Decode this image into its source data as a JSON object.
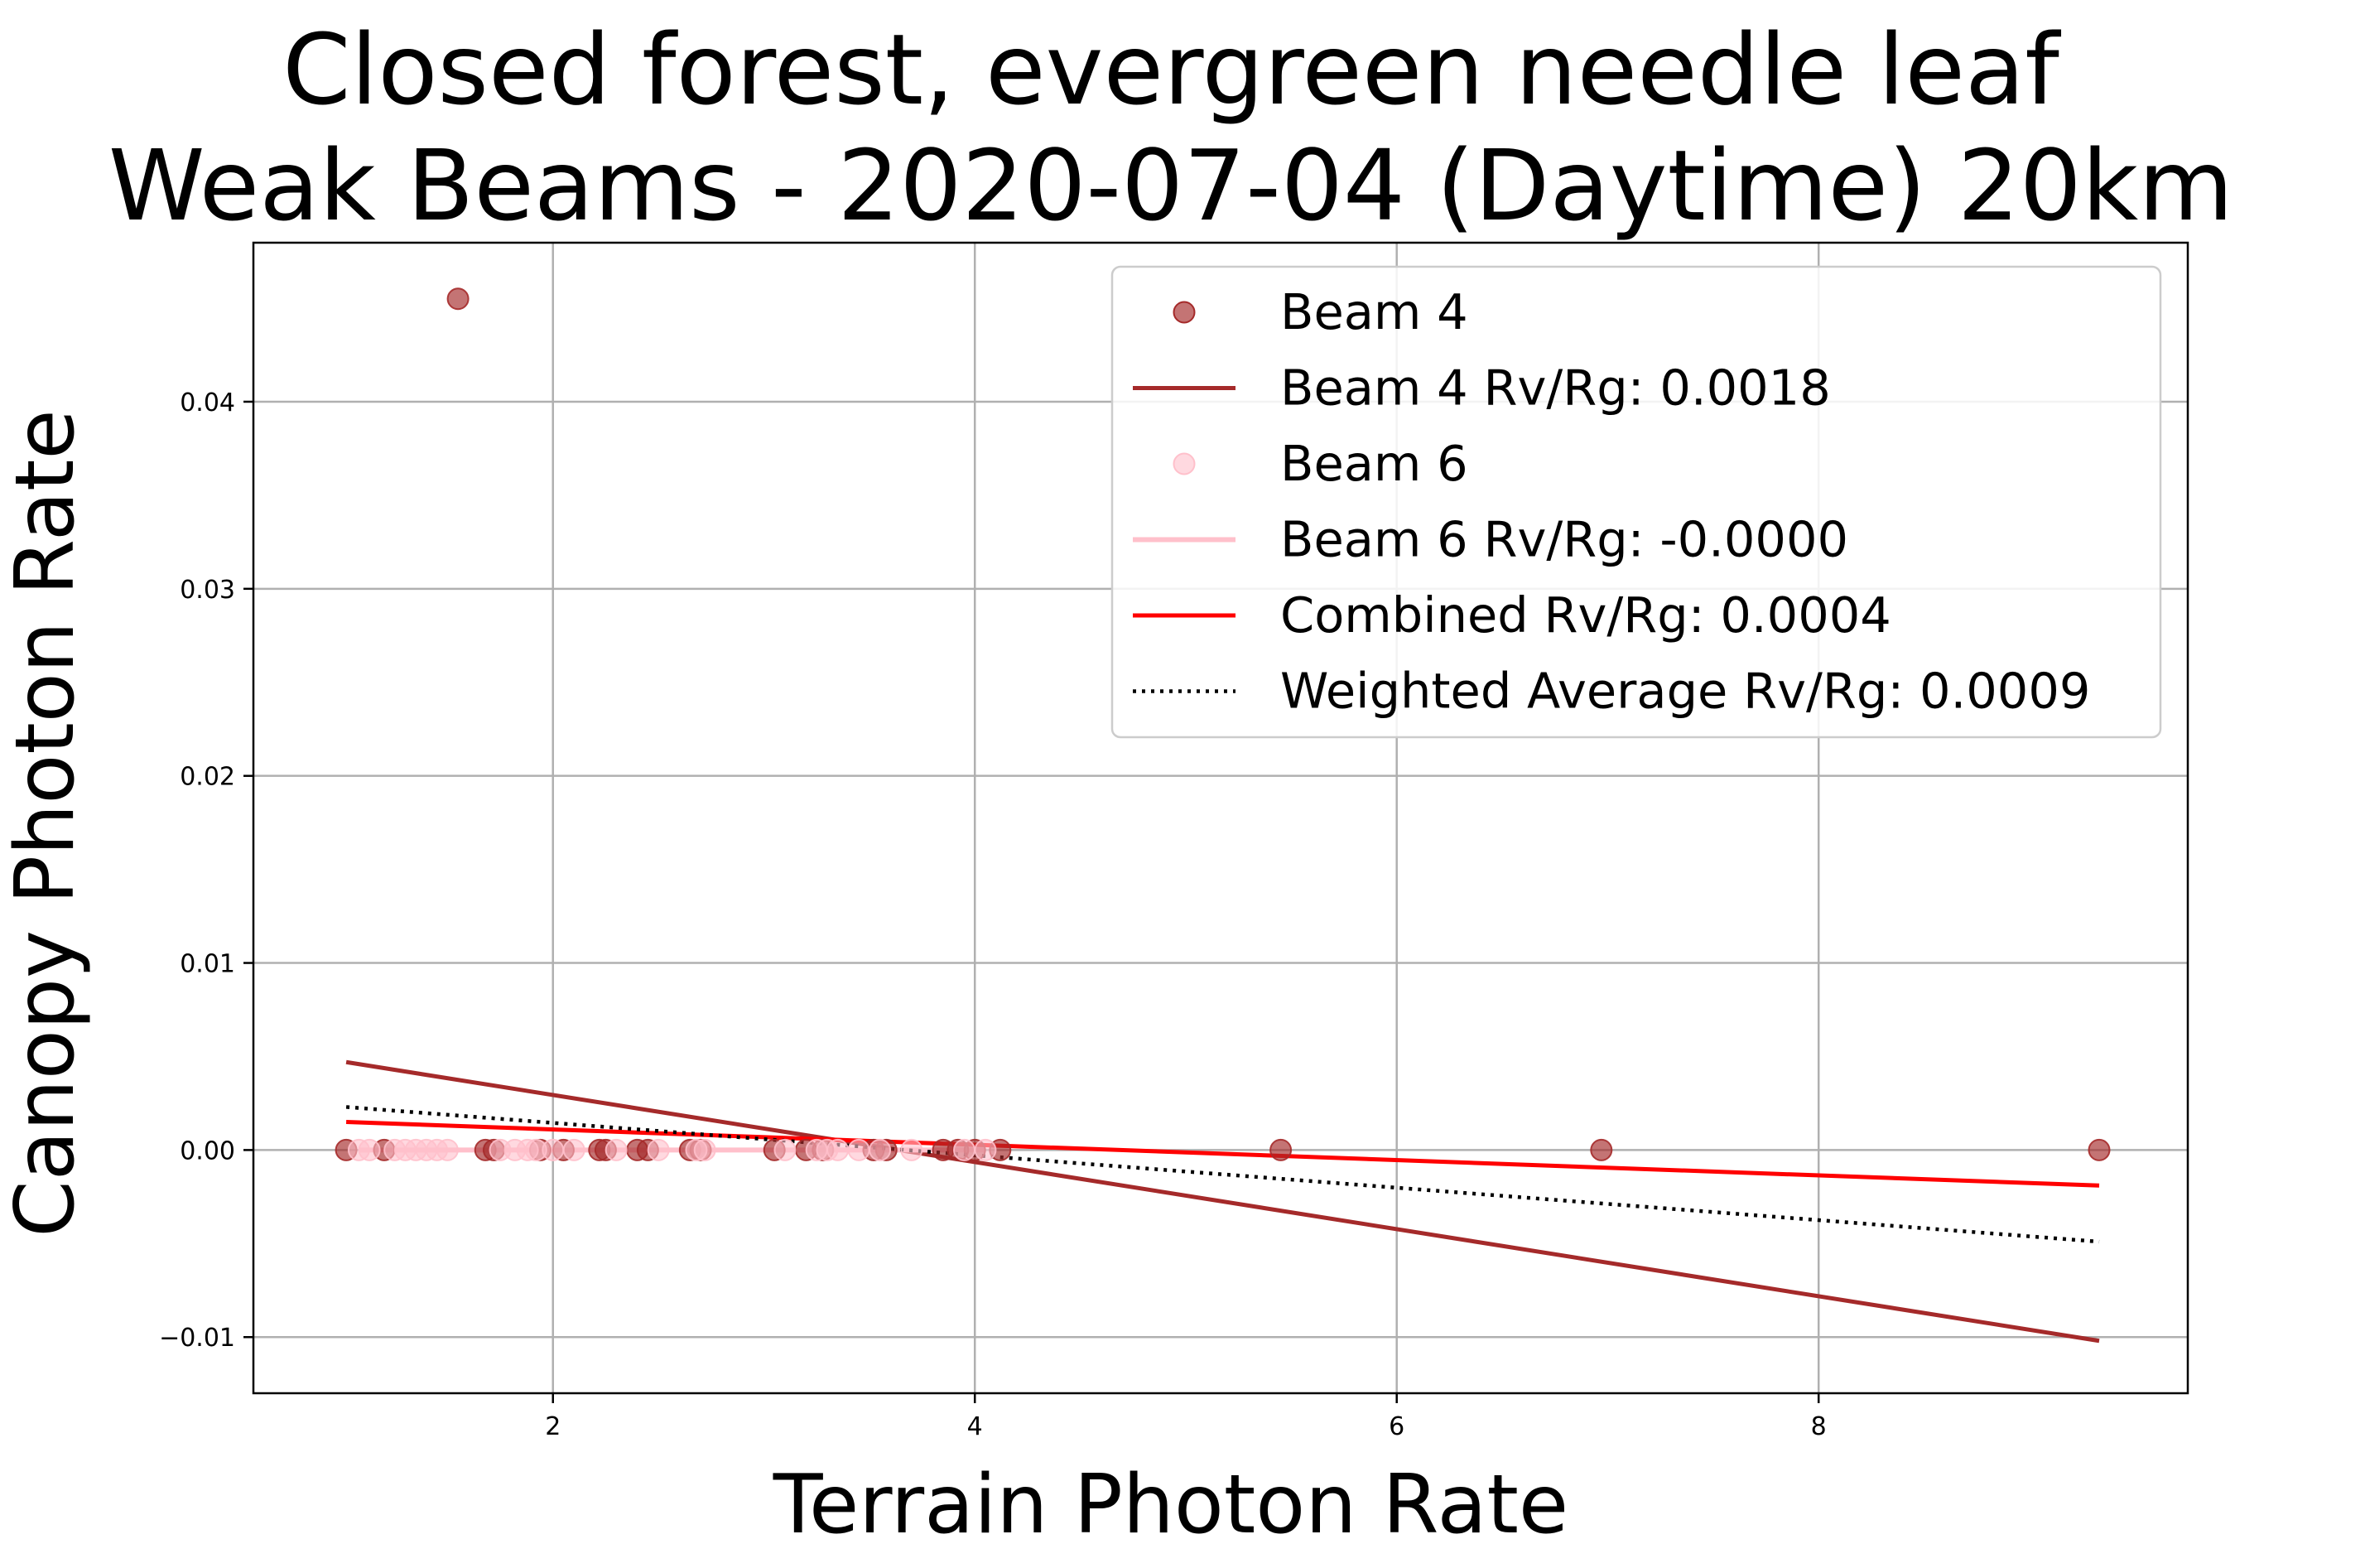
{
  "chart_data": {
    "type": "scatter",
    "title": [
      "Closed forest, evergreen needle leaf",
      "Weak Beams - 2020-07-04 (Daytime) 20km"
    ],
    "xlabel": "Terrain Photon Rate",
    "ylabel": "Canopy Photon Rate",
    "xlim": [
      0.58,
      9.75
    ],
    "ylim": [
      -0.013,
      0.0485
    ],
    "xticks": [
      2,
      4,
      6,
      8
    ],
    "xtick_labels": [
      "2",
      "4",
      "6",
      "8"
    ],
    "yticks": [
      -0.01,
      0.0,
      0.01,
      0.02,
      0.03,
      0.04
    ],
    "ytick_labels": [
      "−0.01",
      "0.00",
      "0.01",
      "0.02",
      "0.03",
      "0.04"
    ],
    "grid": true,
    "legend_position": "upper-right",
    "colors": {
      "beam4": "#a52a2a",
      "beam6": "#ffc0cb",
      "combined": "#ff0000",
      "weighted": "#000000",
      "grid": "#b0b0b0"
    },
    "series": [
      {
        "name": "Beam 4",
        "kind": "scatter",
        "color": "#a52a2a",
        "points": [
          [
            1.02,
            0.0
          ],
          [
            1.2,
            0.0
          ],
          [
            1.55,
            0.0455
          ],
          [
            1.68,
            0.0
          ],
          [
            1.72,
            0.0
          ],
          [
            1.94,
            0.0
          ],
          [
            2.05,
            0.0
          ],
          [
            2.22,
            0.0
          ],
          [
            2.25,
            0.0
          ],
          [
            2.4,
            0.0
          ],
          [
            2.45,
            0.0
          ],
          [
            2.65,
            0.0
          ],
          [
            2.7,
            0.0
          ],
          [
            3.05,
            0.0
          ],
          [
            3.2,
            0.0
          ],
          [
            3.28,
            0.0
          ],
          [
            3.52,
            0.0
          ],
          [
            3.58,
            0.0
          ],
          [
            3.85,
            0.0
          ],
          [
            3.92,
            0.0
          ],
          [
            4.0,
            0.0
          ],
          [
            4.12,
            0.0
          ],
          [
            5.45,
            0.0
          ],
          [
            6.97,
            0.0
          ],
          [
            9.33,
            0.0
          ]
        ]
      },
      {
        "name": "Beam 4 Rv/Rg: 0.0018",
        "kind": "line",
        "color": "#a52a2a",
        "points": [
          [
            1.02,
            0.0047
          ],
          [
            9.33,
            -0.0102
          ]
        ]
      },
      {
        "name": "Beam 6",
        "kind": "scatter",
        "color": "#ffc0cb",
        "points": [
          [
            1.08,
            0.0
          ],
          [
            1.13,
            0.0
          ],
          [
            1.25,
            0.0
          ],
          [
            1.3,
            0.0
          ],
          [
            1.35,
            0.0
          ],
          [
            1.4,
            0.0
          ],
          [
            1.45,
            0.0
          ],
          [
            1.5,
            0.0
          ],
          [
            1.75,
            0.0
          ],
          [
            1.82,
            0.0
          ],
          [
            1.88,
            0.0
          ],
          [
            1.92,
            0.0
          ],
          [
            2.0,
            0.0
          ],
          [
            2.1,
            0.0
          ],
          [
            2.3,
            0.0
          ],
          [
            2.5,
            0.0
          ],
          [
            2.68,
            0.0
          ],
          [
            2.72,
            0.0
          ],
          [
            3.1,
            0.0
          ],
          [
            3.25,
            0.0
          ],
          [
            3.3,
            0.0
          ],
          [
            3.35,
            0.0
          ],
          [
            3.45,
            0.0
          ],
          [
            3.55,
            0.0
          ],
          [
            3.7,
            0.0
          ],
          [
            3.95,
            0.0
          ],
          [
            4.05,
            0.0
          ]
        ]
      },
      {
        "name": "Beam 6 Rv/Rg: -0.0000",
        "kind": "line",
        "color": "#ffc0cb",
        "points": [
          [
            1.08,
            0.0
          ],
          [
            4.05,
            0.0
          ]
        ]
      },
      {
        "name": "Combined Rv/Rg: 0.0004",
        "kind": "line",
        "color": "#ff0000",
        "points": [
          [
            1.02,
            0.0015
          ],
          [
            9.33,
            -0.0019
          ]
        ]
      },
      {
        "name": "Weighted Average Rv/Rg: 0.0009",
        "kind": "dotted-line",
        "color": "#000000",
        "points": [
          [
            1.02,
            0.0023
          ],
          [
            9.33,
            -0.0049
          ]
        ]
      }
    ]
  }
}
